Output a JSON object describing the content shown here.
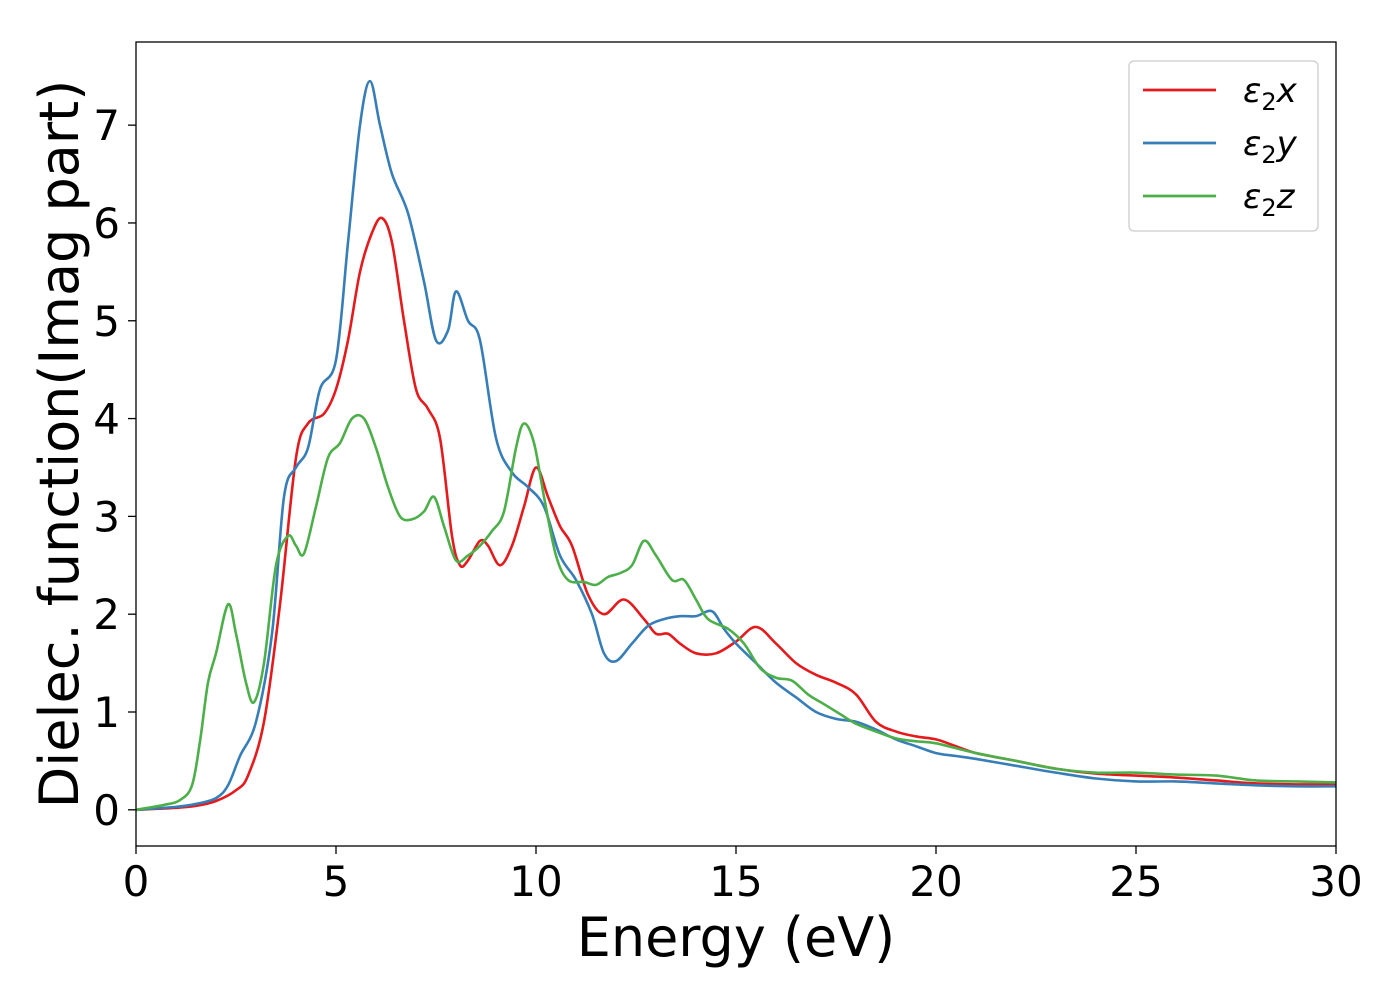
{
  "chart_data": {
    "type": "line",
    "title": "",
    "xlabel": "Energy (eV)",
    "ylabel": "Dielec. function(Imag part)",
    "xlim": [
      0,
      30
    ],
    "ylim": [
      -0.37,
      7.85
    ],
    "xticks": [
      0,
      5,
      10,
      15,
      20,
      25,
      30
    ],
    "yticks": [
      0,
      1,
      2,
      3,
      4,
      5,
      6,
      7
    ],
    "grid": false,
    "legend_position": "top-right",
    "series": [
      {
        "name": "ε₂x",
        "legend_base": "ε",
        "legend_sub": "2",
        "legend_var": "x",
        "color": "#e41a1c",
        "points": [
          [
            0,
            0
          ],
          [
            1,
            0.02
          ],
          [
            1.5,
            0.04
          ],
          [
            2,
            0.09
          ],
          [
            2.5,
            0.2
          ],
          [
            2.8,
            0.35
          ],
          [
            3.2,
            0.9
          ],
          [
            3.6,
            2.1
          ],
          [
            4,
            3.6
          ],
          [
            4.3,
            3.95
          ],
          [
            4.7,
            4.05
          ],
          [
            5,
            4.3
          ],
          [
            5.3,
            4.8
          ],
          [
            5.6,
            5.5
          ],
          [
            5.9,
            5.9
          ],
          [
            6.15,
            6.05
          ],
          [
            6.4,
            5.8
          ],
          [
            6.7,
            5.0
          ],
          [
            7.0,
            4.3
          ],
          [
            7.3,
            4.1
          ],
          [
            7.6,
            3.8
          ],
          [
            7.9,
            2.8
          ],
          [
            8.1,
            2.5
          ],
          [
            8.3,
            2.55
          ],
          [
            8.6,
            2.75
          ],
          [
            8.8,
            2.7
          ],
          [
            9.1,
            2.5
          ],
          [
            9.4,
            2.7
          ],
          [
            9.7,
            3.1
          ],
          [
            10.0,
            3.5
          ],
          [
            10.3,
            3.2
          ],
          [
            10.6,
            2.9
          ],
          [
            10.9,
            2.7
          ],
          [
            11.3,
            2.2
          ],
          [
            11.7,
            2.0
          ],
          [
            12.2,
            2.15
          ],
          [
            12.7,
            1.95
          ],
          [
            13.0,
            1.8
          ],
          [
            13.3,
            1.8
          ],
          [
            13.6,
            1.7
          ],
          [
            14.0,
            1.6
          ],
          [
            14.5,
            1.6
          ],
          [
            15.0,
            1.72
          ],
          [
            15.5,
            1.87
          ],
          [
            16.0,
            1.7
          ],
          [
            16.5,
            1.5
          ],
          [
            17.0,
            1.38
          ],
          [
            17.5,
            1.3
          ],
          [
            18.0,
            1.18
          ],
          [
            18.5,
            0.9
          ],
          [
            19.0,
            0.8
          ],
          [
            19.5,
            0.75
          ],
          [
            20,
            0.72
          ],
          [
            20.5,
            0.65
          ],
          [
            21,
            0.58
          ],
          [
            22,
            0.5
          ],
          [
            23,
            0.42
          ],
          [
            24,
            0.37
          ],
          [
            25,
            0.35
          ],
          [
            26,
            0.33
          ],
          [
            27,
            0.3
          ],
          [
            28,
            0.27
          ],
          [
            29,
            0.26
          ],
          [
            30,
            0.26
          ]
        ]
      },
      {
        "name": "ε₂y",
        "legend_base": "ε",
        "legend_sub": "2",
        "legend_var": "y",
        "color": "#377eb8",
        "points": [
          [
            0,
            0
          ],
          [
            1,
            0.03
          ],
          [
            1.5,
            0.06
          ],
          [
            2,
            0.12
          ],
          [
            2.3,
            0.25
          ],
          [
            2.6,
            0.55
          ],
          [
            3.0,
            0.9
          ],
          [
            3.4,
            1.8
          ],
          [
            3.7,
            3.2
          ],
          [
            4.0,
            3.5
          ],
          [
            4.3,
            3.7
          ],
          [
            4.6,
            4.3
          ],
          [
            5.0,
            4.6
          ],
          [
            5.3,
            5.8
          ],
          [
            5.6,
            7.0
          ],
          [
            5.85,
            7.45
          ],
          [
            6.1,
            7.0
          ],
          [
            6.4,
            6.5
          ],
          [
            6.8,
            6.1
          ],
          [
            7.2,
            5.4
          ],
          [
            7.5,
            4.8
          ],
          [
            7.8,
            4.9
          ],
          [
            8.0,
            5.3
          ],
          [
            8.3,
            5.0
          ],
          [
            8.6,
            4.8
          ],
          [
            9.0,
            3.8
          ],
          [
            9.4,
            3.45
          ],
          [
            9.8,
            3.3
          ],
          [
            10.2,
            3.1
          ],
          [
            10.6,
            2.6
          ],
          [
            11.0,
            2.35
          ],
          [
            11.4,
            2.0
          ],
          [
            11.7,
            1.6
          ],
          [
            12.0,
            1.52
          ],
          [
            12.4,
            1.7
          ],
          [
            12.8,
            1.88
          ],
          [
            13.2,
            1.95
          ],
          [
            13.6,
            1.98
          ],
          [
            14.0,
            1.98
          ],
          [
            14.4,
            2.03
          ],
          [
            14.7,
            1.85
          ],
          [
            15.0,
            1.7
          ],
          [
            15.5,
            1.5
          ],
          [
            16.0,
            1.3
          ],
          [
            16.5,
            1.15
          ],
          [
            17.0,
            1.0
          ],
          [
            17.5,
            0.93
          ],
          [
            18.0,
            0.9
          ],
          [
            18.5,
            0.82
          ],
          [
            19.0,
            0.72
          ],
          [
            19.5,
            0.65
          ],
          [
            20,
            0.58
          ],
          [
            20.5,
            0.55
          ],
          [
            21,
            0.52
          ],
          [
            22,
            0.45
          ],
          [
            23,
            0.38
          ],
          [
            24,
            0.32
          ],
          [
            25,
            0.29
          ],
          [
            26,
            0.29
          ],
          [
            27,
            0.27
          ],
          [
            28,
            0.25
          ],
          [
            29,
            0.24
          ],
          [
            30,
            0.24
          ]
        ]
      },
      {
        "name": "ε₂z",
        "legend_base": "ε",
        "legend_sub": "2",
        "legend_var": "z",
        "color": "#4daf4a",
        "points": [
          [
            0,
            0
          ],
          [
            0.7,
            0.05
          ],
          [
            1.1,
            0.1
          ],
          [
            1.4,
            0.25
          ],
          [
            1.6,
            0.7
          ],
          [
            1.8,
            1.3
          ],
          [
            2.0,
            1.6
          ],
          [
            2.3,
            2.1
          ],
          [
            2.5,
            1.8
          ],
          [
            2.75,
            1.3
          ],
          [
            2.95,
            1.1
          ],
          [
            3.2,
            1.5
          ],
          [
            3.5,
            2.5
          ],
          [
            3.8,
            2.8
          ],
          [
            4.0,
            2.7
          ],
          [
            4.2,
            2.62
          ],
          [
            4.5,
            3.1
          ],
          [
            4.8,
            3.6
          ],
          [
            5.1,
            3.75
          ],
          [
            5.4,
            4.0
          ],
          [
            5.7,
            4.0
          ],
          [
            6.0,
            3.7
          ],
          [
            6.3,
            3.3
          ],
          [
            6.6,
            3.0
          ],
          [
            6.9,
            2.97
          ],
          [
            7.2,
            3.05
          ],
          [
            7.45,
            3.2
          ],
          [
            7.7,
            2.9
          ],
          [
            8.0,
            2.55
          ],
          [
            8.3,
            2.6
          ],
          [
            8.6,
            2.7
          ],
          [
            8.9,
            2.85
          ],
          [
            9.2,
            3.05
          ],
          [
            9.5,
            3.7
          ],
          [
            9.7,
            3.95
          ],
          [
            9.95,
            3.75
          ],
          [
            10.2,
            3.2
          ],
          [
            10.5,
            2.6
          ],
          [
            10.8,
            2.35
          ],
          [
            11.2,
            2.33
          ],
          [
            11.5,
            2.3
          ],
          [
            11.8,
            2.38
          ],
          [
            12.1,
            2.42
          ],
          [
            12.4,
            2.5
          ],
          [
            12.7,
            2.75
          ],
          [
            13.0,
            2.6
          ],
          [
            13.4,
            2.35
          ],
          [
            13.7,
            2.35
          ],
          [
            14.0,
            2.15
          ],
          [
            14.3,
            1.95
          ],
          [
            14.8,
            1.85
          ],
          [
            15.2,
            1.7
          ],
          [
            15.6,
            1.45
          ],
          [
            16.0,
            1.35
          ],
          [
            16.4,
            1.32
          ],
          [
            16.8,
            1.18
          ],
          [
            17.2,
            1.08
          ],
          [
            17.6,
            0.98
          ],
          [
            18.0,
            0.88
          ],
          [
            18.5,
            0.8
          ],
          [
            19.0,
            0.73
          ],
          [
            19.5,
            0.7
          ],
          [
            20,
            0.68
          ],
          [
            21,
            0.58
          ],
          [
            22,
            0.5
          ],
          [
            23,
            0.42
          ],
          [
            24,
            0.38
          ],
          [
            25,
            0.38
          ],
          [
            26,
            0.36
          ],
          [
            27,
            0.35
          ],
          [
            28,
            0.3
          ],
          [
            29,
            0.29
          ],
          [
            30,
            0.28
          ]
        ]
      }
    ]
  }
}
